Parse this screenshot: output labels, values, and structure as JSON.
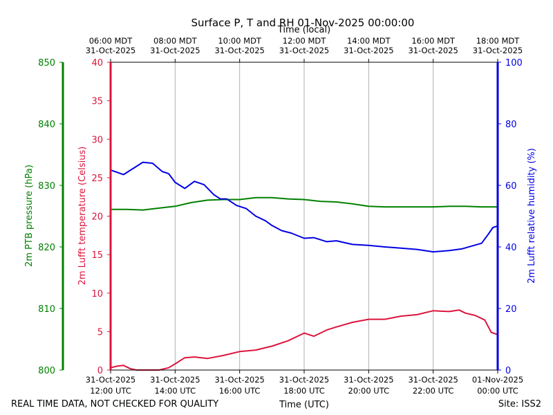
{
  "title": "Surface P, T and RH 01-Nov-2025 00:00:00",
  "footer": {
    "left": "REAL TIME DATA, NOT CHECKED FOR QUALITY",
    "right": "Site: ISS2"
  },
  "colors": {
    "pressure": "#008000",
    "temperature": "#dc143c",
    "humidity": "#0000e6",
    "grid": "#b0b0b0",
    "axis": "#000000"
  },
  "chart_data": {
    "type": "line",
    "title": "Surface P, T and RH 01-Nov-2025 00:00:00",
    "x_bottom_label": "Time (UTC)",
    "x_top_label": "Time (local)",
    "x_range_hours_utc": [
      12,
      24
    ],
    "x_bottom_ticks": [
      {
        "hour": 12,
        "line1": "31-Oct-2025",
        "line2": "12:00 UTC"
      },
      {
        "hour": 14,
        "line1": "31-Oct-2025",
        "line2": "14:00 UTC"
      },
      {
        "hour": 16,
        "line1": "31-Oct-2025",
        "line2": "16:00 UTC"
      },
      {
        "hour": 18,
        "line1": "31-Oct-2025",
        "line2": "18:00 UTC"
      },
      {
        "hour": 20,
        "line1": "31-Oct-2025",
        "line2": "20:00 UTC"
      },
      {
        "hour": 22,
        "line1": "31-Oct-2025",
        "line2": "22:00 UTC"
      },
      {
        "hour": 24,
        "line1": "01-Nov-2025",
        "line2": "00:00 UTC"
      }
    ],
    "x_top_ticks": [
      {
        "hour": 12,
        "line1": "06:00 MDT",
        "line2": "31-Oct-2025"
      },
      {
        "hour": 14,
        "line1": "08:00 MDT",
        "line2": "31-Oct-2025"
      },
      {
        "hour": 16,
        "line1": "10:00 MDT",
        "line2": "31-Oct-2025"
      },
      {
        "hour": 18,
        "line1": "12:00 MDT",
        "line2": "31-Oct-2025"
      },
      {
        "hour": 20,
        "line1": "14:00 MDT",
        "line2": "31-Oct-2025"
      },
      {
        "hour": 22,
        "line1": "16:00 MDT",
        "line2": "31-Oct-2025"
      },
      {
        "hour": 24,
        "line1": "18:00 MDT",
        "line2": "31-Oct-2025"
      }
    ],
    "axes": {
      "pressure": {
        "label": "2m PTB pressure (hPa)",
        "range": [
          800,
          850
        ],
        "ticks": [
          800,
          810,
          820,
          830,
          840,
          850
        ]
      },
      "temperature": {
        "label": "2m Lufft temperature (Celsius)",
        "range": [
          0,
          40
        ],
        "ticks": [
          0,
          5,
          10,
          15,
          20,
          25,
          30,
          35,
          40
        ]
      },
      "humidity": {
        "label": "2m Lufft relative humidity (%)",
        "range": [
          0,
          100
        ],
        "ticks": [
          0,
          20,
          40,
          60,
          80,
          100
        ]
      }
    },
    "series": [
      {
        "name": "pressure",
        "axis": "pressure",
        "x": [
          12.0,
          12.5,
          13.0,
          13.5,
          14.0,
          14.5,
          15.0,
          15.5,
          16.0,
          16.5,
          17.0,
          17.5,
          18.0,
          18.5,
          19.0,
          19.5,
          20.0,
          20.5,
          21.0,
          21.5,
          22.0,
          22.5,
          23.0,
          23.5,
          24.0
        ],
        "y": [
          826.1,
          826.1,
          826.0,
          826.3,
          826.6,
          827.2,
          827.6,
          827.7,
          827.7,
          828.0,
          828.0,
          827.8,
          827.7,
          827.4,
          827.3,
          827.0,
          826.6,
          826.5,
          826.5,
          826.5,
          826.5,
          826.6,
          826.6,
          826.5,
          826.5
        ]
      },
      {
        "name": "temperature",
        "axis": "temperature",
        "x": [
          12.0,
          12.2,
          12.4,
          12.6,
          12.8,
          13.0,
          13.5,
          13.8,
          14.0,
          14.3,
          14.6,
          15.0,
          15.5,
          16.0,
          16.5,
          17.0,
          17.5,
          18.0,
          18.3,
          18.7,
          19.0,
          19.5,
          20.0,
          20.5,
          21.0,
          21.5,
          22.0,
          22.5,
          22.8,
          23.0,
          23.3,
          23.6,
          23.8,
          24.0
        ],
        "y": [
          0.3,
          0.5,
          0.6,
          0.2,
          0.0,
          0.0,
          0.0,
          0.3,
          0.8,
          1.6,
          1.7,
          1.5,
          1.9,
          2.4,
          2.6,
          3.1,
          3.8,
          4.8,
          4.4,
          5.2,
          5.6,
          6.2,
          6.6,
          6.6,
          7.0,
          7.2,
          7.7,
          7.6,
          7.8,
          7.4,
          7.1,
          6.5,
          4.9,
          4.6
        ]
      },
      {
        "name": "humidity",
        "axis": "humidity",
        "x": [
          12.0,
          12.4,
          12.7,
          13.0,
          13.3,
          13.6,
          13.8,
          14.0,
          14.3,
          14.6,
          14.9,
          15.2,
          15.4,
          15.6,
          15.9,
          16.2,
          16.5,
          16.8,
          17.0,
          17.3,
          17.6,
          18.0,
          18.3,
          18.7,
          19.0,
          19.5,
          20.0,
          20.5,
          21.0,
          21.5,
          22.0,
          22.5,
          22.9,
          23.2,
          23.5,
          23.7,
          23.85,
          24.0
        ],
        "y": [
          65.0,
          63.5,
          65.5,
          67.5,
          67.2,
          64.5,
          63.8,
          61.0,
          59.0,
          61.3,
          60.2,
          57.0,
          55.6,
          55.6,
          53.5,
          52.5,
          50.0,
          48.5,
          47.0,
          45.3,
          44.5,
          42.8,
          43.0,
          41.7,
          42.0,
          40.8,
          40.5,
          40.0,
          39.6,
          39.2,
          38.4,
          38.8,
          39.4,
          40.3,
          41.2,
          44.0,
          46.3,
          46.8
        ]
      }
    ]
  }
}
